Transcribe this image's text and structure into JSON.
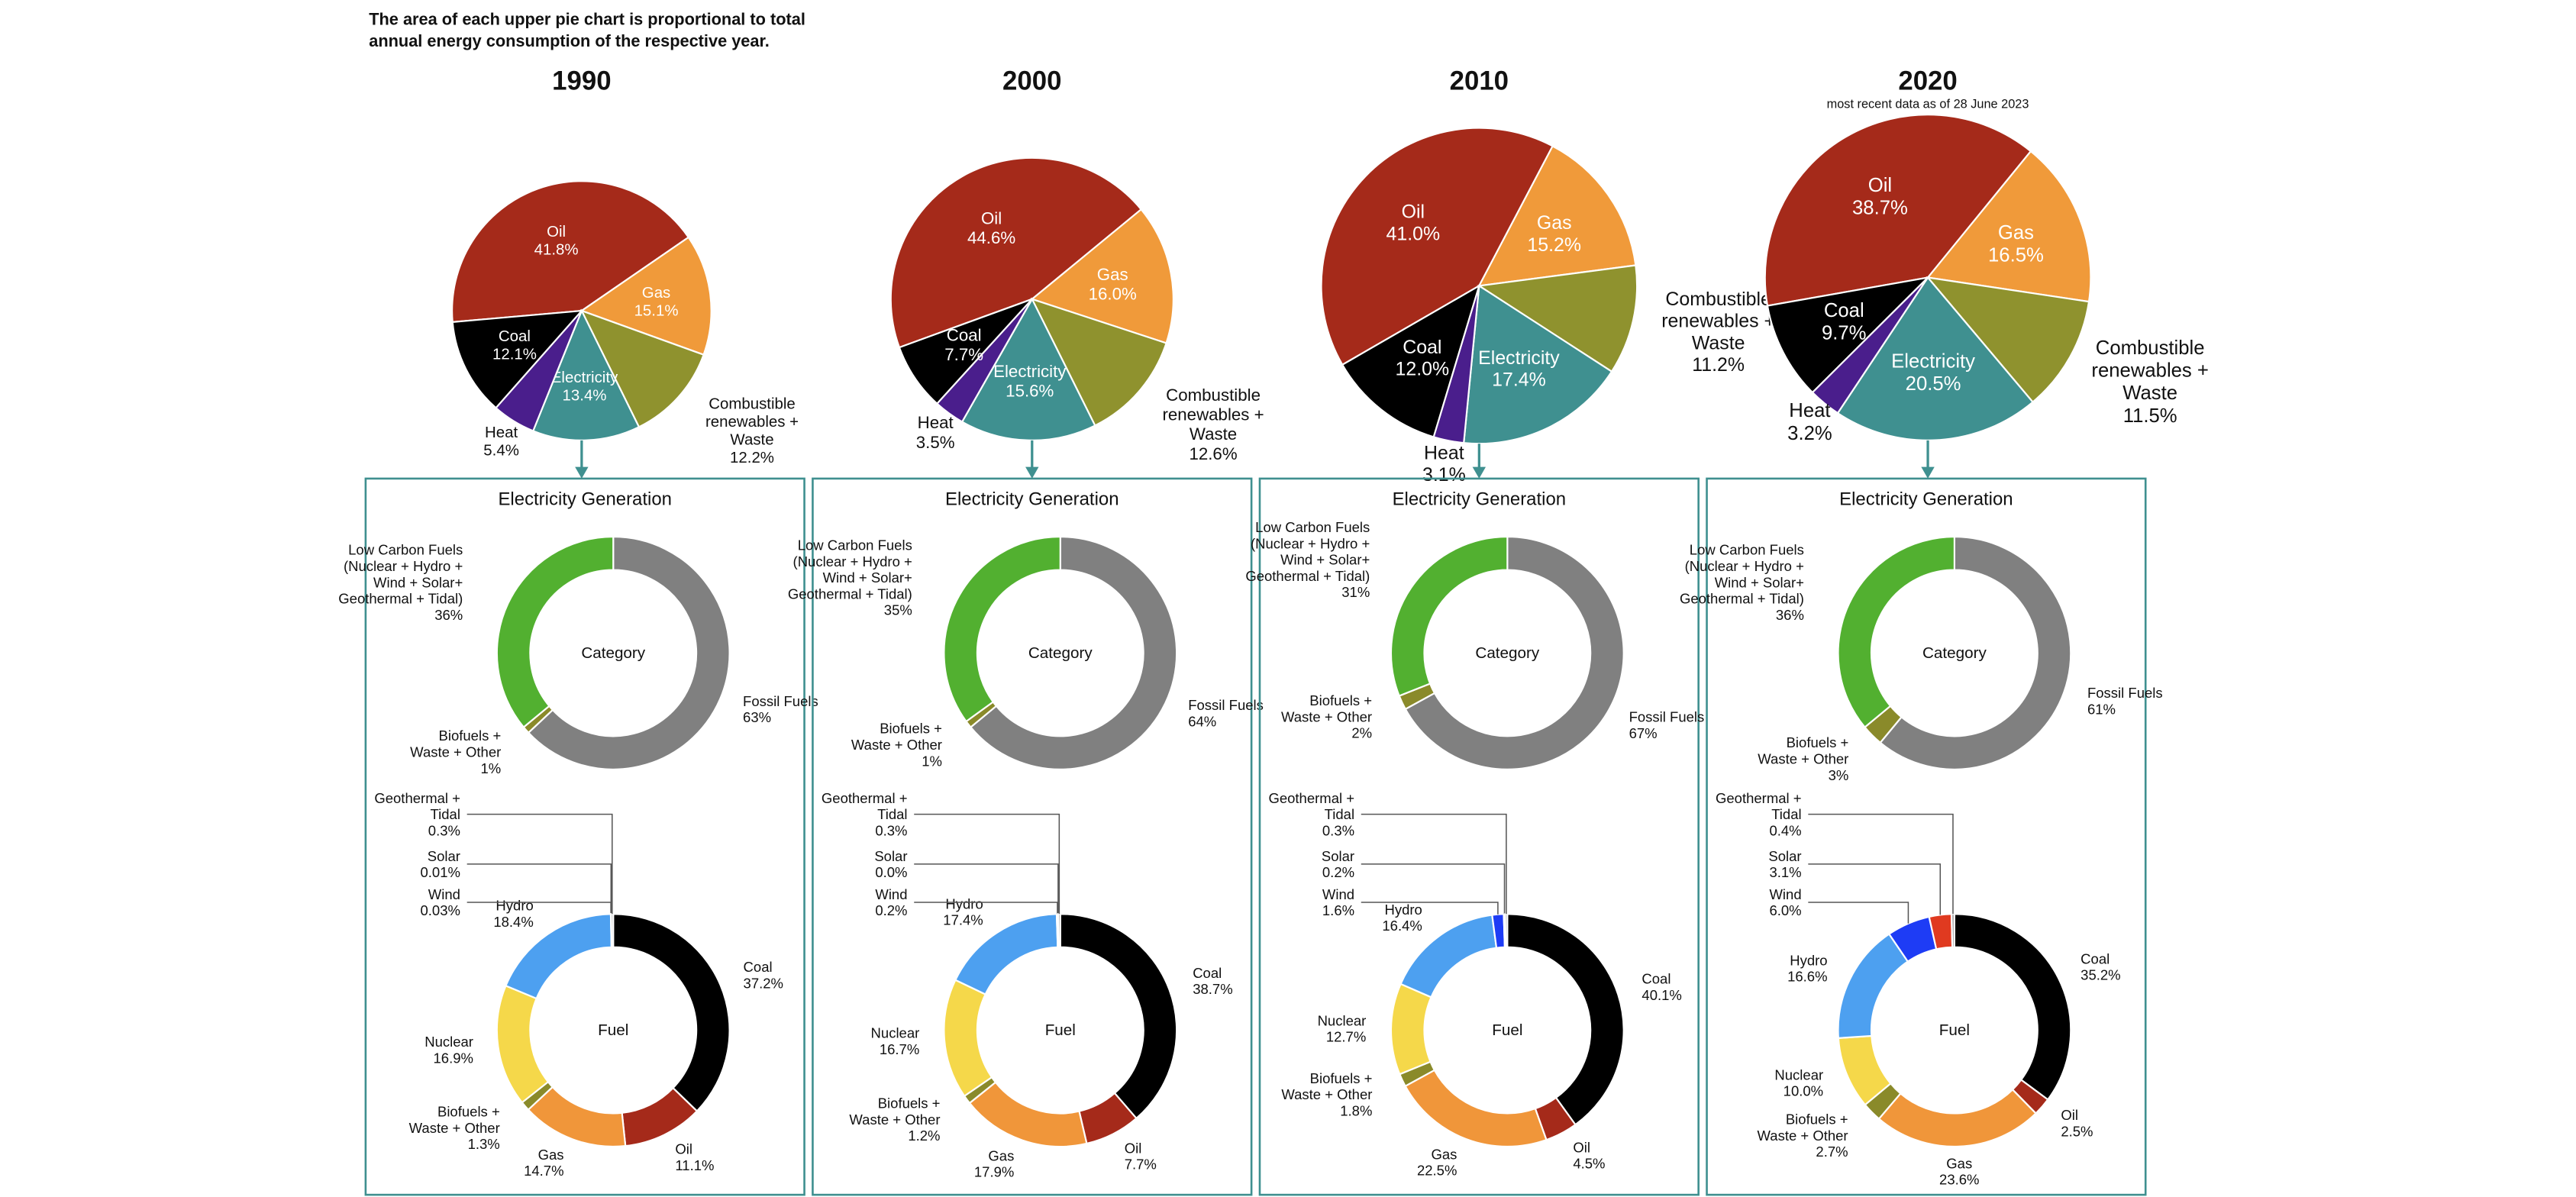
{
  "note": [
    "The area of each upper pie chart is proportional to total",
    "annual energy consumption of the respective year."
  ],
  "chart_data": [
    {
      "title": "1990",
      "pie": {
        "type": "pie",
        "labels": [
          [
            "Oil"
          ],
          [
            "Gas"
          ],
          [
            "Combustible",
            "renewables +",
            "Waste"
          ],
          [
            "Electricity"
          ],
          [
            "Heat"
          ],
          [
            "Coal"
          ]
        ],
        "values": [
          41.8,
          15.1,
          12.2,
          13.4,
          5.4,
          12.1
        ],
        "value_labels": [
          "41.8%",
          "15.1%",
          "12.2%",
          "13.4%",
          "5.4%",
          "12.1%"
        ],
        "colors": [
          "#a52a1a",
          "#f09a3a",
          "#8f922e",
          "#3f9090",
          "#4a1e8c",
          "#000000"
        ]
      },
      "electricity": {
        "title": "Electricity Generation",
        "category": {
          "type": "donut",
          "center": "Category",
          "labels": [
            [
              "Fossil Fuels"
            ],
            [
              "Biofuels +",
              "Waste + Other"
            ],
            [
              "Low Carbon Fuels",
              "(Nuclear + Hydro +",
              "Wind + Solar+",
              "Geothermal + Tidal)"
            ]
          ],
          "values": [
            63,
            1,
            36
          ],
          "value_labels": [
            "63%",
            "1%",
            "36%"
          ],
          "colors": [
            "#808080",
            "#8a8a2a",
            "#52b030"
          ]
        },
        "fuel": {
          "type": "donut",
          "center": "Fuel",
          "labels": [
            [
              "Coal"
            ],
            [
              "Oil"
            ],
            [
              "Gas"
            ],
            [
              "Biofuels +",
              "Waste + Other"
            ],
            [
              "Nuclear"
            ],
            [
              "Hydro"
            ],
            [
              "Wind"
            ],
            [
              "Solar"
            ],
            [
              "Geothermal +",
              "Tidal"
            ]
          ],
          "values": [
            37.2,
            11.1,
            14.7,
            1.3,
            16.9,
            18.4,
            0.03,
            0.01,
            0.3
          ],
          "value_labels": [
            "37.2%",
            "11.1%",
            "14.7%",
            "1.3%",
            "16.9%",
            "18.4%",
            "0.03%",
            "0.01%",
            "0.3%"
          ],
          "colors": [
            "#000000",
            "#a52a1a",
            "#f0963a",
            "#8a8a2a",
            "#f5d84a",
            "#4da0f0",
            "#1e3cf5",
            "#e03a20",
            "#a0a0a0"
          ]
        }
      }
    },
    {
      "title": "2000",
      "pie": {
        "type": "pie",
        "labels": [
          [
            "Oil"
          ],
          [
            "Gas"
          ],
          [
            "Combustible",
            "renewables +",
            "Waste"
          ],
          [
            "Electricity"
          ],
          [
            "Heat"
          ],
          [
            "Coal"
          ]
        ],
        "values": [
          44.6,
          16.0,
          12.6,
          15.6,
          3.5,
          7.7
        ],
        "value_labels": [
          "44.6%",
          "16.0%",
          "12.6%",
          "15.6%",
          "3.5%",
          "7.7%"
        ],
        "colors": [
          "#a52a1a",
          "#f09a3a",
          "#8f922e",
          "#3f9090",
          "#4a1e8c",
          "#000000"
        ]
      },
      "electricity": {
        "title": "Electricity Generation",
        "category": {
          "type": "donut",
          "center": "Category",
          "labels": [
            [
              "Fossil Fuels"
            ],
            [
              "Biofuels +",
              "Waste + Other"
            ],
            [
              "Low Carbon Fuels",
              "(Nuclear + Hydro +",
              "Wind + Solar+",
              "Geothermal + Tidal)"
            ]
          ],
          "values": [
            64,
            1,
            35
          ],
          "value_labels": [
            "64%",
            "1%",
            "35%"
          ],
          "colors": [
            "#808080",
            "#8a8a2a",
            "#52b030"
          ]
        },
        "fuel": {
          "type": "donut",
          "center": "Fuel",
          "labels": [
            [
              "Coal"
            ],
            [
              "Oil"
            ],
            [
              "Gas"
            ],
            [
              "Biofuels +",
              "Waste + Other"
            ],
            [
              "Nuclear"
            ],
            [
              "Hydro"
            ],
            [
              "Wind"
            ],
            [
              "Solar"
            ],
            [
              "Geothermal +",
              "Tidal"
            ]
          ],
          "values": [
            38.7,
            7.7,
            17.9,
            1.2,
            16.7,
            17.4,
            0.2,
            0.0,
            0.3
          ],
          "value_labels": [
            "38.7%",
            "7.7%",
            "17.9%",
            "1.2%",
            "16.7%",
            "17.4%",
            "0.2%",
            "0.0%",
            "0.3%"
          ],
          "colors": [
            "#000000",
            "#a52a1a",
            "#f0963a",
            "#8a8a2a",
            "#f5d84a",
            "#4da0f0",
            "#1e3cf5",
            "#e03a20",
            "#a0a0a0"
          ]
        }
      }
    },
    {
      "title": "2010",
      "pie": {
        "type": "pie",
        "labels": [
          [
            "Oil"
          ],
          [
            "Gas"
          ],
          [
            "Combustible",
            "renewables +",
            "Waste"
          ],
          [
            "Electricity"
          ],
          [
            "Heat"
          ],
          [
            "Coal"
          ]
        ],
        "values": [
          41.0,
          15.2,
          11.2,
          17.4,
          3.1,
          12.0
        ],
        "value_labels": [
          "41.0%",
          "15.2%",
          "11.2%",
          "17.4%",
          "3.1%",
          "12.0%"
        ],
        "colors": [
          "#a52a1a",
          "#f09a3a",
          "#8f922e",
          "#3f9090",
          "#4a1e8c",
          "#000000"
        ]
      },
      "electricity": {
        "title": "Electricity Generation",
        "category": {
          "type": "donut",
          "center": "Category",
          "labels": [
            [
              "Fossil Fuels"
            ],
            [
              "Biofuels +",
              "Waste + Other"
            ],
            [
              "Low Carbon Fuels",
              "(Nuclear + Hydro +",
              "Wind + Solar+",
              "Geothermal + Tidal)"
            ]
          ],
          "values": [
            67,
            2,
            31
          ],
          "value_labels": [
            "67%",
            "2%",
            "31%"
          ],
          "colors": [
            "#808080",
            "#8a8a2a",
            "#52b030"
          ]
        },
        "fuel": {
          "type": "donut",
          "center": "Fuel",
          "labels": [
            [
              "Coal"
            ],
            [
              "Oil"
            ],
            [
              "Gas"
            ],
            [
              "Biofuels +",
              "Waste + Other"
            ],
            [
              "Nuclear"
            ],
            [
              "Hydro"
            ],
            [
              "Wind"
            ],
            [
              "Solar"
            ],
            [
              "Geothermal +",
              "Tidal"
            ]
          ],
          "values": [
            40.1,
            4.5,
            22.5,
            1.8,
            12.7,
            16.4,
            1.6,
            0.2,
            0.3
          ],
          "value_labels": [
            "40.1%",
            "4.5%",
            "22.5%",
            "1.8%",
            "12.7%",
            "16.4%",
            "1.6%",
            "0.2%",
            "0.3%"
          ],
          "colors": [
            "#000000",
            "#a52a1a",
            "#f0963a",
            "#8a8a2a",
            "#f5d84a",
            "#4da0f0",
            "#1e3cf5",
            "#e03a20",
            "#a0a0a0"
          ]
        }
      }
    },
    {
      "title": "2020",
      "subtitle": "most recent data as of 28 June 2023",
      "pie": {
        "type": "pie",
        "labels": [
          [
            "Oil"
          ],
          [
            "Gas"
          ],
          [
            "Combustible",
            "renewables +",
            "Waste"
          ],
          [
            "Electricity"
          ],
          [
            "Heat"
          ],
          [
            "Coal"
          ]
        ],
        "values": [
          38.7,
          16.5,
          11.5,
          20.5,
          3.2,
          9.7
        ],
        "value_labels": [
          "38.7%",
          "16.5%",
          "11.5%",
          "20.5%",
          "3.2%",
          "9.7%"
        ],
        "colors": [
          "#a52a1a",
          "#f09a3a",
          "#8f922e",
          "#3f9090",
          "#4a1e8c",
          "#000000"
        ]
      },
      "electricity": {
        "title": "Electricity Generation",
        "category": {
          "type": "donut",
          "center": "Category",
          "labels": [
            [
              "Fossil Fuels"
            ],
            [
              "Biofuels +",
              "Waste + Other"
            ],
            [
              "Low Carbon Fuels",
              "(Nuclear + Hydro +",
              "Wind + Solar+",
              "Geothermal + Tidal)"
            ]
          ],
          "values": [
            61,
            3,
            36
          ],
          "value_labels": [
            "61%",
            "3%",
            "36%"
          ],
          "colors": [
            "#808080",
            "#8a8a2a",
            "#52b030"
          ]
        },
        "fuel": {
          "type": "donut",
          "center": "Fuel",
          "labels": [
            [
              "Coal"
            ],
            [
              "Oil"
            ],
            [
              "Gas"
            ],
            [
              "Biofuels +",
              "Waste + Other"
            ],
            [
              "Nuclear"
            ],
            [
              "Hydro"
            ],
            [
              "Wind"
            ],
            [
              "Solar"
            ],
            [
              "Geothermal +",
              "Tidal"
            ]
          ],
          "values": [
            35.2,
            2.5,
            23.6,
            2.7,
            10.0,
            16.6,
            6.0,
            3.1,
            0.4
          ],
          "value_labels": [
            "35.2%",
            "2.5%",
            "23.6%",
            "2.7%",
            "10.0%",
            "16.6%",
            "6.0%",
            "3.1%",
            "0.4%"
          ],
          "colors": [
            "#000000",
            "#a52a1a",
            "#f0963a",
            "#8a8a2a",
            "#f5d84a",
            "#4da0f0",
            "#1e3cf5",
            "#e03a20",
            "#a0a0a0"
          ]
        }
      }
    }
  ]
}
